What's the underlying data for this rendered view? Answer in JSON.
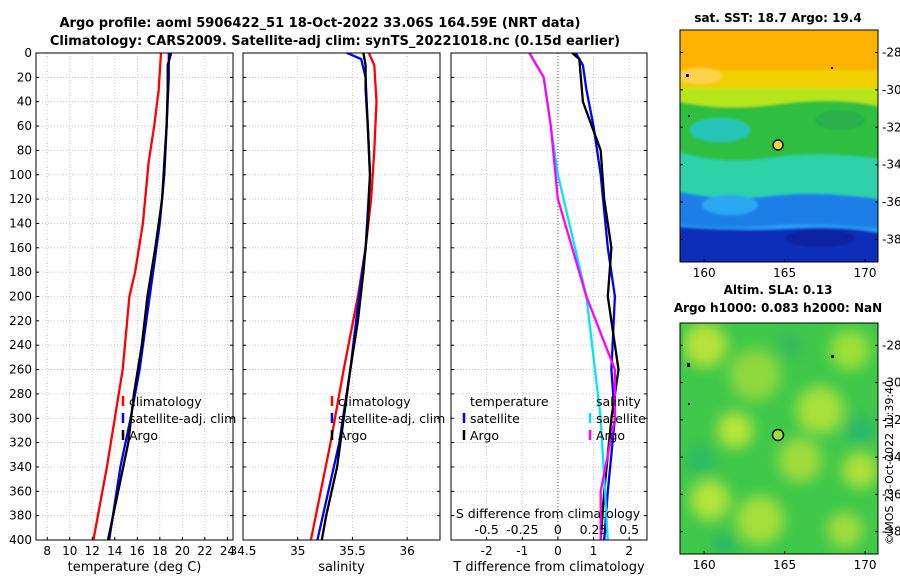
{
  "figure": {
    "title_line1": "Argo profile: aoml 5906422_51 18-Oct-2022 33.06S 164.59E (NRT data)",
    "title_line2": "Climatology: CARS2009. Satellite-adj clim: synTS_20221018.nc (0.15d earlier)",
    "credit": "©IMOS 23-Oct-2022 11:39:40"
  },
  "colors": {
    "climatology": "#ff0000",
    "satellite": "#0000ff",
    "argo": "#000000",
    "sat_salinity": "#00e5ff",
    "argo_salinity": "#ff00ff"
  },
  "chart_data": [
    {
      "type": "line",
      "id": "temperature",
      "xlabel": "temperature (deg C)",
      "ylabel": "",
      "xlim": [
        7,
        24.5
      ],
      "ylim": [
        400,
        0
      ],
      "xticks": [
        8,
        10,
        12,
        14,
        16,
        18,
        20,
        22,
        24
      ],
      "yticks": [
        0,
        20,
        40,
        60,
        80,
        100,
        120,
        140,
        160,
        180,
        200,
        220,
        240,
        260,
        280,
        300,
        320,
        340,
        360,
        380,
        400
      ],
      "legend": [
        "climatology",
        "satellite-adj. clim",
        "Argo"
      ],
      "series": [
        {
          "name": "climatology",
          "color": "#ff0000",
          "depth": [
            0,
            30,
            60,
            90,
            140,
            180,
            200,
            260,
            300,
            340,
            400
          ],
          "values": [
            18.1,
            17.9,
            17.5,
            17.0,
            16.5,
            15.8,
            15.3,
            14.7,
            14.0,
            13.3,
            12.1
          ]
        },
        {
          "name": "satellite-adj. clim",
          "color": "#0000ff",
          "depth": [
            0,
            20,
            40,
            60,
            80,
            100,
            140,
            180,
            220,
            260,
            300,
            340,
            400
          ],
          "values": [
            18.8,
            18.8,
            18.7,
            18.6,
            18.5,
            18.4,
            18.0,
            17.4,
            16.8,
            16.2,
            15.4,
            14.5,
            13.5
          ]
        },
        {
          "name": "Argo",
          "color": "#000000",
          "depth": [
            0,
            10,
            30,
            60,
            90,
            120,
            160,
            200,
            240,
            280,
            320,
            360,
            400
          ],
          "values": [
            19.0,
            18.7,
            18.7,
            18.6,
            18.4,
            18.2,
            17.6,
            16.9,
            16.4,
            15.7,
            15.2,
            14.3,
            13.4
          ]
        }
      ]
    },
    {
      "type": "line",
      "id": "salinity",
      "xlabel": "salinity",
      "xlim": [
        34.5,
        36.3
      ],
      "ylim": [
        400,
        0
      ],
      "xticks": [
        34.5,
        35,
        35.5,
        36
      ],
      "legend": [
        "climatology",
        "satellite-adj. clim",
        "Argo"
      ],
      "series": [
        {
          "name": "climatology",
          "color": "#ff0000",
          "depth": [
            0,
            10,
            40,
            80,
            120,
            160,
            200,
            260,
            320,
            400
          ],
          "values": [
            35.65,
            35.7,
            35.72,
            35.7,
            35.67,
            35.62,
            35.55,
            35.42,
            35.3,
            35.12
          ]
        },
        {
          "name": "satellite-adj. clim",
          "color": "#0000ff",
          "depth": [
            0,
            5,
            20,
            60,
            100,
            160,
            200,
            260,
            320,
            400
          ],
          "values": [
            35.45,
            35.58,
            35.62,
            35.64,
            35.66,
            35.62,
            35.56,
            35.48,
            35.38,
            35.18
          ]
        },
        {
          "name": "Argo",
          "color": "#000000",
          "depth": [
            0,
            10,
            30,
            60,
            100,
            140,
            180,
            220,
            260,
            300,
            340,
            380,
            400
          ],
          "values": [
            35.6,
            35.62,
            35.62,
            35.64,
            35.66,
            35.64,
            35.6,
            35.55,
            35.48,
            35.42,
            35.36,
            35.26,
            35.22
          ]
        }
      ]
    },
    {
      "type": "line",
      "id": "difference",
      "xlabel": "T difference from climatology",
      "xlabel_top": "S difference from climatology",
      "xlim": [
        -3,
        2.5
      ],
      "ylim": [
        400,
        0
      ],
      "xticks": [
        -2,
        -1,
        0,
        1,
        2
      ],
      "xticklabels": [
        "-2",
        "-1",
        "0",
        "1",
        "2"
      ],
      "s_ticklabels": [
        "-0.5",
        "-0.25",
        "0",
        "0.25",
        "0.5"
      ],
      "legend_temperature": [
        "temperature",
        "satellite",
        "Argo"
      ],
      "legend_salinity": [
        "salinity",
        "satellite",
        "Argo"
      ],
      "series": [
        {
          "name": "T satellite",
          "color": "#0000ff",
          "depth": [
            0,
            10,
            30,
            60,
            100,
            160,
            200,
            260,
            300,
            360,
            400
          ],
          "values": [
            0.5,
            0.7,
            0.8,
            1.0,
            1.2,
            1.4,
            1.6,
            1.5,
            1.6,
            1.4,
            1.3
          ]
        },
        {
          "name": "T Argo",
          "color": "#000000",
          "depth": [
            0,
            5,
            40,
            80,
            120,
            160,
            200,
            260,
            300,
            360,
            400
          ],
          "values": [
            0.4,
            0.6,
            0.7,
            1.2,
            1.3,
            1.5,
            1.4,
            1.7,
            1.5,
            1.3,
            1.2
          ]
        },
        {
          "name": "S satellite",
          "color": "#00e5ff",
          "depth": [
            0,
            20,
            60,
            100,
            200,
            300,
            400
          ],
          "values": [
            -0.2,
            -0.1,
            -0.05,
            0.0,
            0.2,
            0.3,
            0.35
          ]
        },
        {
          "name": "S Argo",
          "color": "#ff00ff",
          "depth": [
            0,
            20,
            60,
            120,
            200,
            260,
            300,
            360,
            400
          ],
          "values": [
            -0.2,
            -0.1,
            -0.05,
            0.0,
            0.2,
            0.4,
            0.4,
            0.3,
            0.3
          ]
        }
      ]
    },
    {
      "type": "heatmap",
      "id": "sst_map",
      "title": "sat. SST: 18.7 Argo: 19.4",
      "xlim": [
        158.5,
        170.8
      ],
      "ylim": [
        -39.2,
        -26.8
      ],
      "xticks": [
        160,
        165,
        170
      ],
      "yticks": [
        -28,
        -30,
        -32,
        -34,
        -36,
        -38
      ],
      "marker": {
        "lon": 164.59,
        "lat": -33.06
      }
    },
    {
      "type": "heatmap",
      "id": "sla_map",
      "title_line1": "Altim. SLA: 0.13",
      "title_line2": "Argo h1000: 0.083 h2000: NaN",
      "xlim": [
        158.5,
        170.8
      ],
      "ylim": [
        -39.2,
        -26.8
      ],
      "xticks": [
        160,
        165,
        170
      ],
      "yticks": [
        -28,
        -30,
        -32,
        -34,
        -36,
        -38
      ],
      "marker": {
        "lon": 164.59,
        "lat": -33.06
      }
    }
  ]
}
